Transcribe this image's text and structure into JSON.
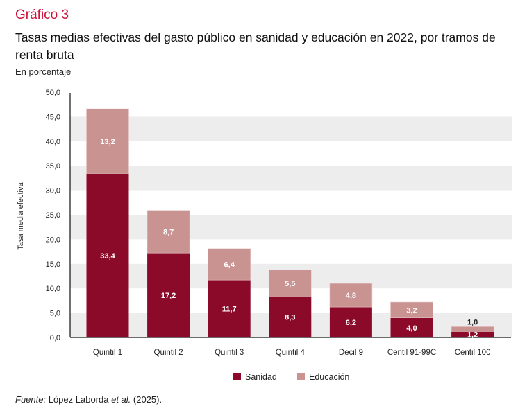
{
  "header": {
    "kicker": "Gráfico 3",
    "title": "Tasas medias efectivas del gasto público en sanidad y educación en 2022, por tramos de renta bruta",
    "subtitle": "En porcentaje"
  },
  "source": {
    "label": "Fuente:",
    "authors": "López Laborda",
    "etal": "et al.",
    "year": "(2025)."
  },
  "colors": {
    "sanidad": "#8b0a2a",
    "educacion": "#c99392",
    "band": "#ededed",
    "kicker": "#d0103a"
  },
  "chart_data": {
    "type": "bar",
    "stacked": true,
    "title": "Tasas medias efectivas del gasto público en sanidad y educación en 2022, por tramos de renta bruta",
    "xlabel": "",
    "ylabel": "Tasa media efectiva",
    "ylim": [
      0,
      50
    ],
    "yticks": [
      "0,0",
      "5,0",
      "10,0",
      "15,0",
      "20,0",
      "25,0",
      "30,0",
      "35,0",
      "40,0",
      "45,0",
      "50,0"
    ],
    "ytick_values": [
      0,
      5,
      10,
      15,
      20,
      25,
      30,
      35,
      40,
      45,
      50
    ],
    "grid": "alternating horizontal bands",
    "legend_position": "bottom-center",
    "categories": [
      "Quintil 1",
      "Quintil 2",
      "Quintil 3",
      "Quintil 4",
      "Decil 9",
      "Centil 91-99C",
      "Centil 100"
    ],
    "series": [
      {
        "name": "Sanidad",
        "values": [
          33.4,
          17.2,
          11.7,
          8.3,
          6.2,
          4.0,
          1.2
        ],
        "labels": [
          "33,4",
          "17,2",
          "11,7",
          "8,3",
          "6,2",
          "4,0",
          "1,2"
        ]
      },
      {
        "name": "Educación",
        "values": [
          13.2,
          8.7,
          6.4,
          5.5,
          4.8,
          3.2,
          1.0
        ],
        "labels": [
          "13,2",
          "8,7",
          "6,4",
          "5,5",
          "4,8",
          "3,2",
          "1,0"
        ]
      }
    ]
  }
}
